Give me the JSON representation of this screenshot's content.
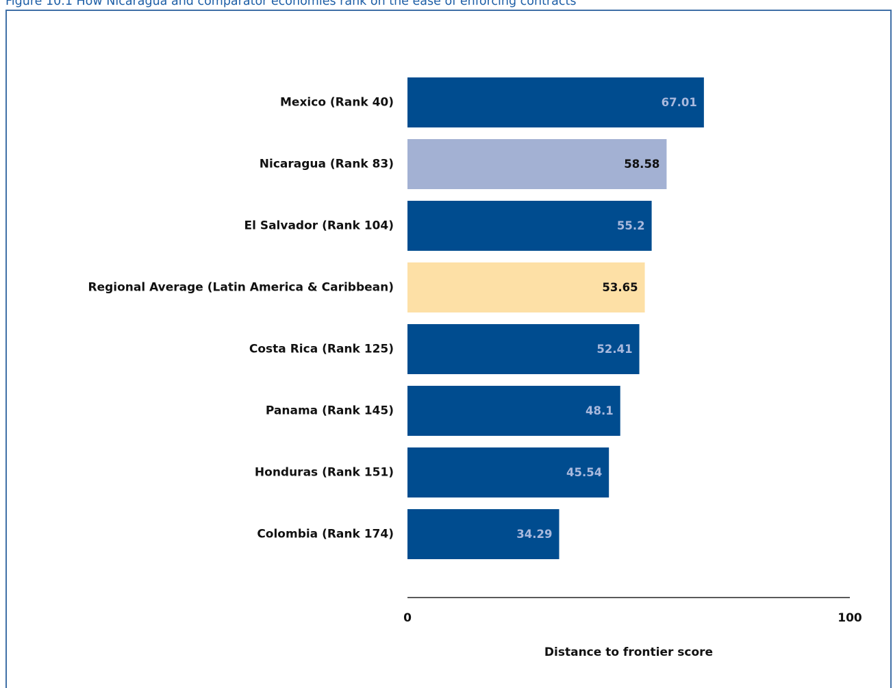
{
  "figure": {
    "title": "Figure 10.1 How Nicaragua and comparator economies rank on the ease of enforcing contracts"
  },
  "colors": {
    "default_bar": "#004c8f",
    "focus_bar": "#a3b1d3",
    "regional_bar": "#fde0a6",
    "default_value_text": "#a9b9dd",
    "highlight_value_text": "#111111",
    "axis_line": "#222222",
    "frame": "#3f6fa6",
    "title": "#1d5ea6"
  },
  "chart_data": {
    "type": "bar",
    "orientation": "horizontal",
    "categories": [
      "Mexico (Rank 40)",
      "Nicaragua (Rank 83)",
      "El Salvador (Rank 104)",
      "Regional Average (Latin America & Caribbean)",
      "Costa Rica (Rank 125)",
      "Panama (Rank 145)",
      "Honduras (Rank 151)",
      "Colombia (Rank 174)"
    ],
    "values": [
      67.01,
      58.58,
      55.2,
      53.65,
      52.41,
      48.1,
      45.54,
      34.29
    ],
    "value_labels": [
      "67.01",
      "58.58",
      "55.2",
      "53.65",
      "52.41",
      "48.1",
      "45.54",
      "34.29"
    ],
    "bar_styles": [
      "default",
      "focus",
      "default",
      "regional",
      "default",
      "default",
      "default",
      "default"
    ],
    "xlim": [
      0,
      100
    ],
    "x_ticks": [
      "0",
      "100"
    ],
    "xlabel": "Distance to frontier score",
    "ylabel": "",
    "grid": false,
    "legend": "none"
  }
}
